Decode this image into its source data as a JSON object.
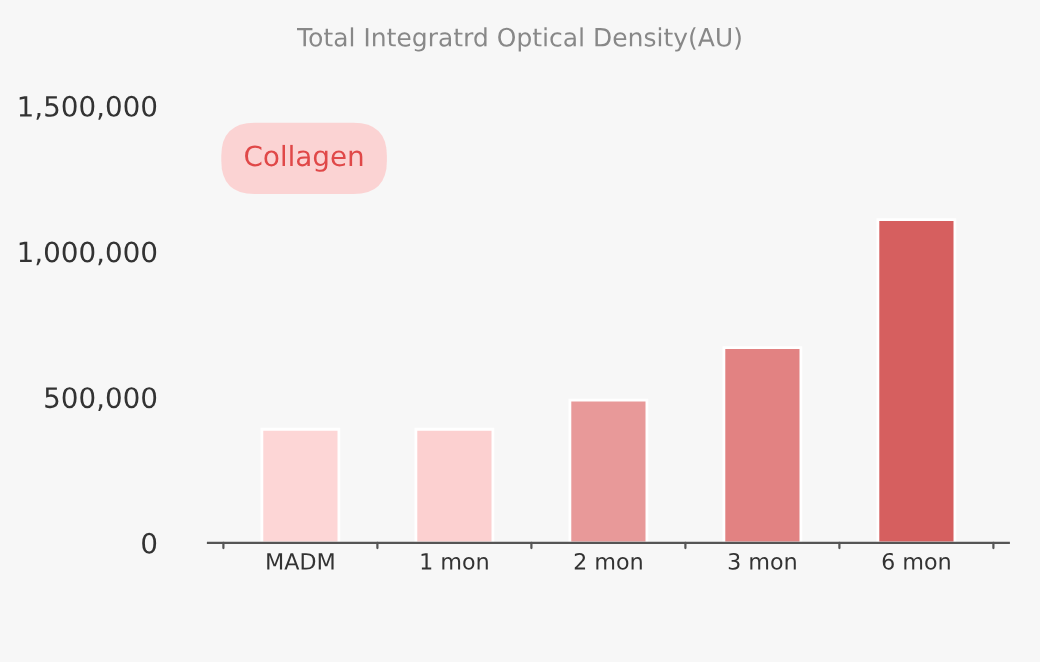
{
  "chart_data": {
    "type": "bar",
    "title": "Total Integratrd Optical Density(AU)",
    "categories": [
      "MADM",
      "1 mon",
      "2 mon",
      "3 mon",
      "6 mon"
    ],
    "values": [
      390000,
      390000,
      490000,
      670000,
      1110000
    ],
    "colors": [
      "#fdd6d6",
      "#fcd0d0",
      "#e89999",
      "#e28282",
      "#d65f5f"
    ],
    "ylim": [
      0,
      1500000
    ],
    "yticks": [
      {
        "value": 0,
        "label": "0"
      },
      {
        "value": 500000,
        "label": "500,000"
      },
      {
        "value": 1000000,
        "label": "1,000,000"
      },
      {
        "value": 1500000,
        "label": "1,500,000"
      }
    ],
    "annotations": [
      "Collagen"
    ],
    "grid": false,
    "legend": false
  }
}
